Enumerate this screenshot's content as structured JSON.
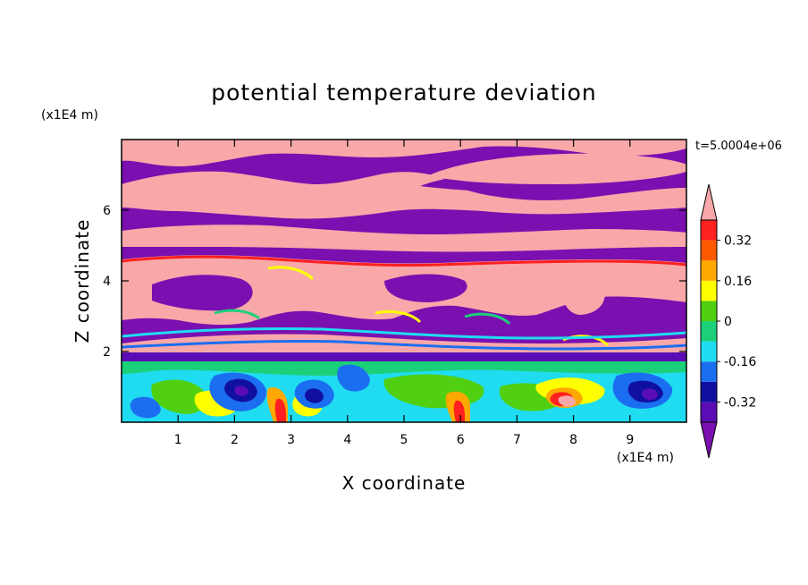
{
  "chart_data": {
    "type": "heatmap",
    "title": "potential temperature deviation",
    "xlabel": "X coordinate",
    "ylabel": "Z coordinate",
    "x_units": "(x1E4 m)",
    "y_units": "(x1E4 m)",
    "time_label": "t=5.0004e+06",
    "xlim": [
      0,
      10
    ],
    "ylim": [
      0,
      8
    ],
    "x_ticks": [
      1,
      2,
      3,
      4,
      5,
      6,
      7,
      8,
      9
    ],
    "y_ticks": [
      2,
      4,
      6
    ],
    "colorbar": {
      "levels": [
        -0.4,
        -0.32,
        -0.24,
        -0.16,
        -0.08,
        0,
        0.08,
        0.16,
        0.24,
        0.32,
        0.4
      ],
      "labels": [
        "0.32",
        "0.16",
        "0",
        "-0.16",
        "-0.32"
      ],
      "label_values": [
        0.32,
        0.16,
        0,
        -0.16,
        -0.32
      ],
      "colors": [
        "#7a10b0",
        "#5a0db4",
        "#1010a0",
        "#1c6ef0",
        "#20dcf0",
        "#1cd07a",
        "#50d010",
        "#ffff00",
        "#ffa800",
        "#ff5a00",
        "#ff2020",
        "#f8a8a8"
      ],
      "extend": "both"
    },
    "field": {
      "bands": [
        {
          "z_range": [
            0,
            1.7
          ],
          "description": "mixed near-zero values"
        },
        {
          "z_range": [
            1.7,
            8
          ],
          "description": "alternating positive and negative layers"
        }
      ]
    }
  }
}
